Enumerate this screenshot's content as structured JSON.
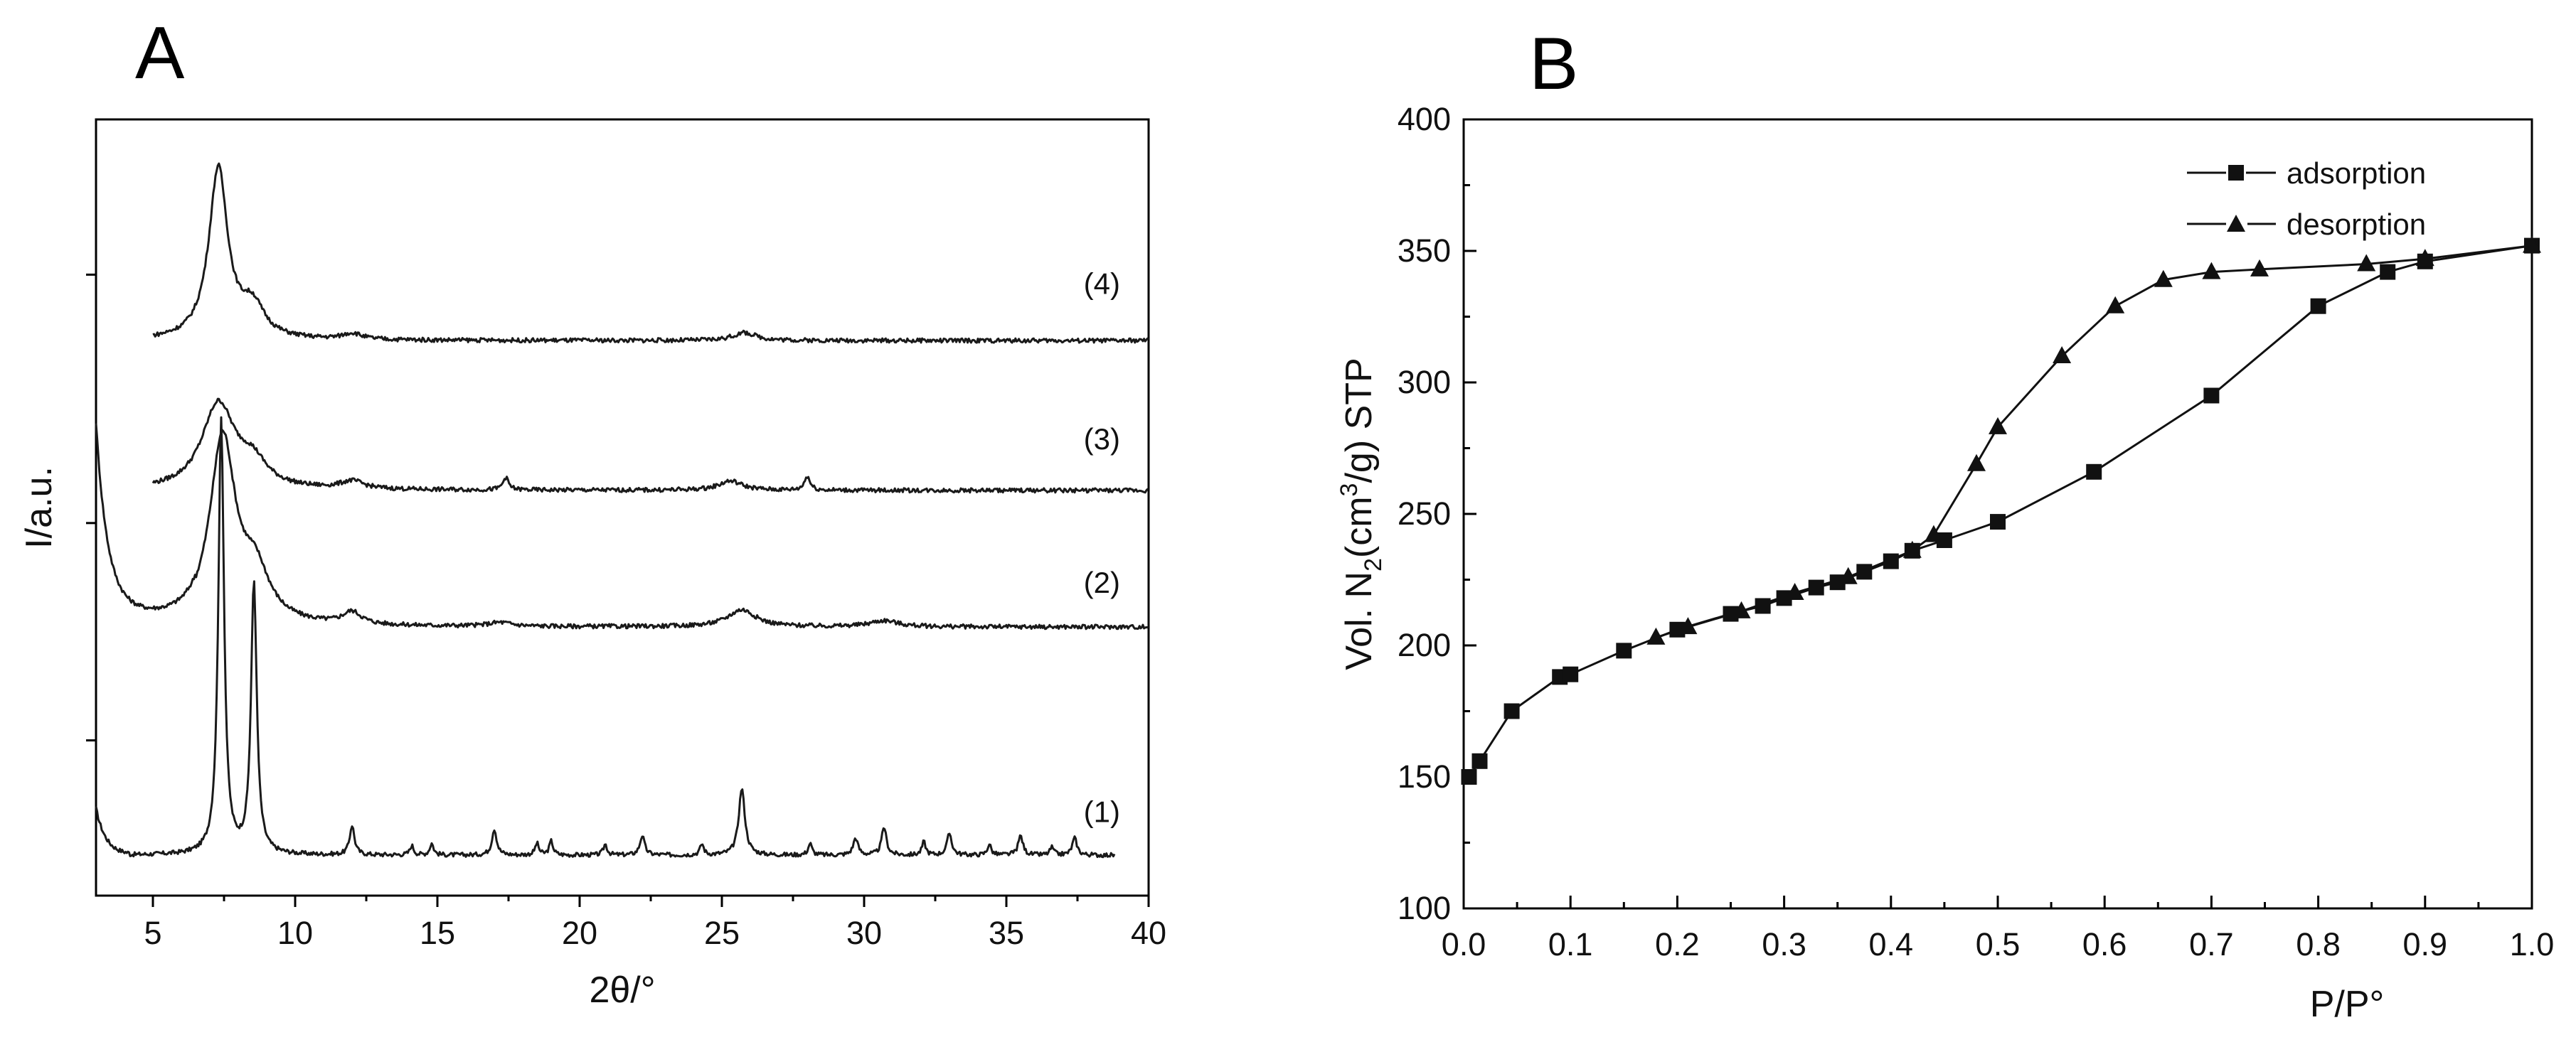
{
  "chart_data": [
    {
      "panel": "A",
      "type": "line",
      "title": "",
      "xlabel": "2θ/°",
      "ylabel": "I/a.u.",
      "xlim": [
        3,
        40
      ],
      "ylim": [
        0,
        100
      ],
      "xticks": [
        5,
        10,
        15,
        20,
        25,
        30,
        35,
        40
      ],
      "yticks_unlabeled": [
        20,
        48,
        80
      ],
      "series": [
        {
          "name": "(1)",
          "label": "(1)",
          "x_range": [
            3,
            38.8
          ],
          "baseline": 5.2,
          "peaks": [
            [
              7.4,
              56,
              0.12
            ],
            [
              8.55,
              35,
              0.12
            ],
            [
              12.0,
              3.8,
              0.1
            ],
            [
              14.1,
              1.2,
              0.08
            ],
            [
              14.8,
              1.5,
              0.08
            ],
            [
              17.0,
              3.4,
              0.1
            ],
            [
              18.5,
              1.5,
              0.08
            ],
            [
              19.0,
              1.8,
              0.08
            ],
            [
              20.9,
              1.4,
              0.08
            ],
            [
              22.2,
              2.5,
              0.1
            ],
            [
              24.3,
              1.4,
              0.08
            ],
            [
              25.7,
              8.6,
              0.13
            ],
            [
              28.1,
              1.5,
              0.08
            ],
            [
              29.7,
              2.2,
              0.1
            ],
            [
              30.7,
              3.6,
              0.1
            ],
            [
              32.1,
              1.7,
              0.08
            ],
            [
              33.0,
              2.8,
              0.1
            ],
            [
              34.4,
              1.4,
              0.08
            ],
            [
              35.5,
              2.5,
              0.1
            ],
            [
              36.6,
              1.0,
              0.08
            ],
            [
              37.4,
              2.2,
              0.1
            ]
          ],
          "label_x": 39,
          "label_y": 9.5
        },
        {
          "name": "(2)",
          "label": "(2)",
          "x_range": [
            3,
            40
          ],
          "baseline": 34.6,
          "peaks": [
            [
              7.45,
              24,
              0.55
            ],
            [
              8.6,
              6,
              0.6
            ],
            [
              12.0,
              1.6,
              0.4
            ],
            [
              17.2,
              0.5,
              0.5
            ],
            [
              25.7,
              2.2,
              0.6
            ],
            [
              30.7,
              0.8,
              0.6
            ]
          ],
          "label_x": 39,
          "label_y": 39
        },
        {
          "name": "(3)",
          "label": "(3)",
          "x_range": [
            5,
            40
          ],
          "baseline": 52.2,
          "peaks": [
            [
              7.3,
              11,
              0.7
            ],
            [
              8.5,
              3,
              0.6
            ],
            [
              12.0,
              1.0,
              0.5
            ],
            [
              17.4,
              1.6,
              0.12
            ],
            [
              25.3,
              1.2,
              0.5
            ],
            [
              28.0,
              1.8,
              0.12
            ]
          ],
          "label_x": 39,
          "label_y": 57.5
        },
        {
          "name": "(4)",
          "label": "(4)",
          "x_range": [
            5,
            40
          ],
          "baseline": 71.5,
          "peaks": [
            [
              7.3,
              22,
              0.4
            ],
            [
              8.5,
              4,
              0.5
            ],
            [
              12.0,
              0.8,
              0.4
            ],
            [
              25.8,
              1.0,
              0.5
            ]
          ],
          "label_x": 39,
          "label_y": 77.5
        }
      ]
    },
    {
      "panel": "B",
      "type": "line",
      "title": "",
      "xlabel": "P/P°",
      "ylabel_parts": [
        "Vol. N",
        "2",
        "(cm",
        "3",
        "/g) STP"
      ],
      "xlim": [
        0.0,
        1.0
      ],
      "ylim": [
        100,
        400
      ],
      "xticks": [
        "0.0",
        "0.1",
        "0.2",
        "0.3",
        "0.4",
        "0.5",
        "0.6",
        "0.7",
        "0.8",
        "0.9",
        "1.0"
      ],
      "yticks": [
        "100",
        "150",
        "200",
        "250",
        "300",
        "350",
        "400"
      ],
      "legend_position": "top-right",
      "series": [
        {
          "name": "adsorption",
          "marker": "square",
          "x": [
            0.005,
            0.015,
            0.045,
            0.09,
            0.1,
            0.15,
            0.2,
            0.25,
            0.28,
            0.3,
            0.33,
            0.35,
            0.375,
            0.4,
            0.42,
            0.45,
            0.5,
            0.59,
            0.7,
            0.8,
            0.865,
            0.9,
            1.0
          ],
          "y": [
            150,
            156,
            175,
            188,
            189,
            198,
            206,
            212,
            215,
            218,
            222,
            224,
            228,
            232,
            236,
            240,
            247,
            266,
            295,
            329,
            342,
            346,
            352
          ]
        },
        {
          "name": "desorption",
          "marker": "triangle",
          "x": [
            1.0,
            0.9,
            0.845,
            0.745,
            0.7,
            0.655,
            0.61,
            0.56,
            0.5,
            0.48,
            0.44,
            0.42,
            0.36,
            0.31,
            0.26,
            0.21,
            0.18
          ],
          "y": [
            352,
            347,
            345,
            343,
            342,
            339,
            329,
            310,
            283,
            269,
            242,
            236,
            226,
            220,
            213,
            207,
            203
          ]
        }
      ]
    }
  ]
}
